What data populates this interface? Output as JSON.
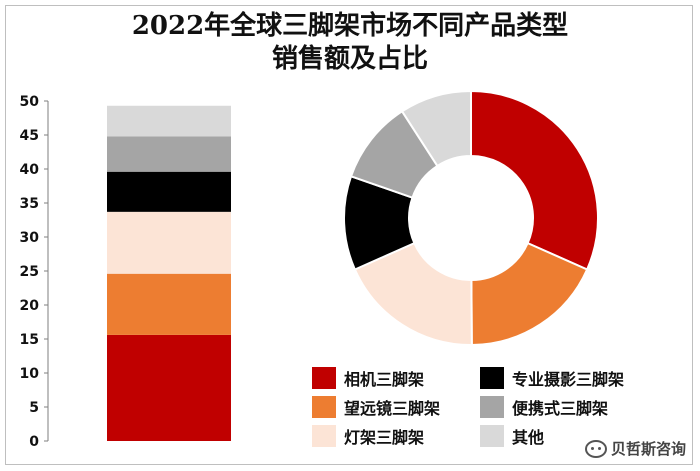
{
  "title_line1": "2022年全球三脚架市场不同产品类型",
  "title_line2": "销售额及占比",
  "watermark": "贝哲斯咨询",
  "chart_data": [
    {
      "type": "bar",
      "stacked": true,
      "ylim": [
        0,
        50
      ],
      "yticks": [
        0,
        5,
        10,
        15,
        20,
        25,
        30,
        35,
        40,
        45,
        50
      ],
      "grid": false,
      "series": [
        {
          "name": "相机三脚架",
          "value": 15.6,
          "color": "#c00000"
        },
        {
          "name": "望远镜三脚架",
          "value": 9,
          "color": "#ed7d31"
        },
        {
          "name": "灯架三脚架",
          "value": 9.1,
          "color": "#fce4d6"
        },
        {
          "name": "专业摄影三脚架",
          "value": 5.9,
          "color": "#000000"
        },
        {
          "name": "便携式三脚架",
          "value": 5.2,
          "color": "#a5a5a5"
        },
        {
          "name": "其他",
          "value": 4.5,
          "color": "#d9d9d9"
        }
      ]
    },
    {
      "type": "pie",
      "donut": true,
      "slices": [
        {
          "name": "相机三脚架",
          "value": 15.6,
          "color": "#c00000"
        },
        {
          "name": "望远镜三脚架",
          "value": 9,
          "color": "#ed7d31"
        },
        {
          "name": "灯架三脚架",
          "value": 9.1,
          "color": "#fce4d6"
        },
        {
          "name": "专业摄影三脚架",
          "value": 5.9,
          "color": "#000000"
        },
        {
          "name": "便携式三脚架",
          "value": 5.2,
          "color": "#a5a5a5"
        },
        {
          "name": "其他",
          "value": 4.5,
          "color": "#d9d9d9"
        }
      ]
    }
  ],
  "legend": [
    {
      "label": "相机三脚架",
      "color": "#c00000"
    },
    {
      "label": "专业摄影三脚架",
      "color": "#000000"
    },
    {
      "label": "望远镜三脚架",
      "color": "#ed7d31"
    },
    {
      "label": "便携式三脚架",
      "color": "#a5a5a5"
    },
    {
      "label": "灯架三脚架",
      "color": "#fce4d6"
    },
    {
      "label": "其他",
      "color": "#d9d9d9"
    }
  ]
}
